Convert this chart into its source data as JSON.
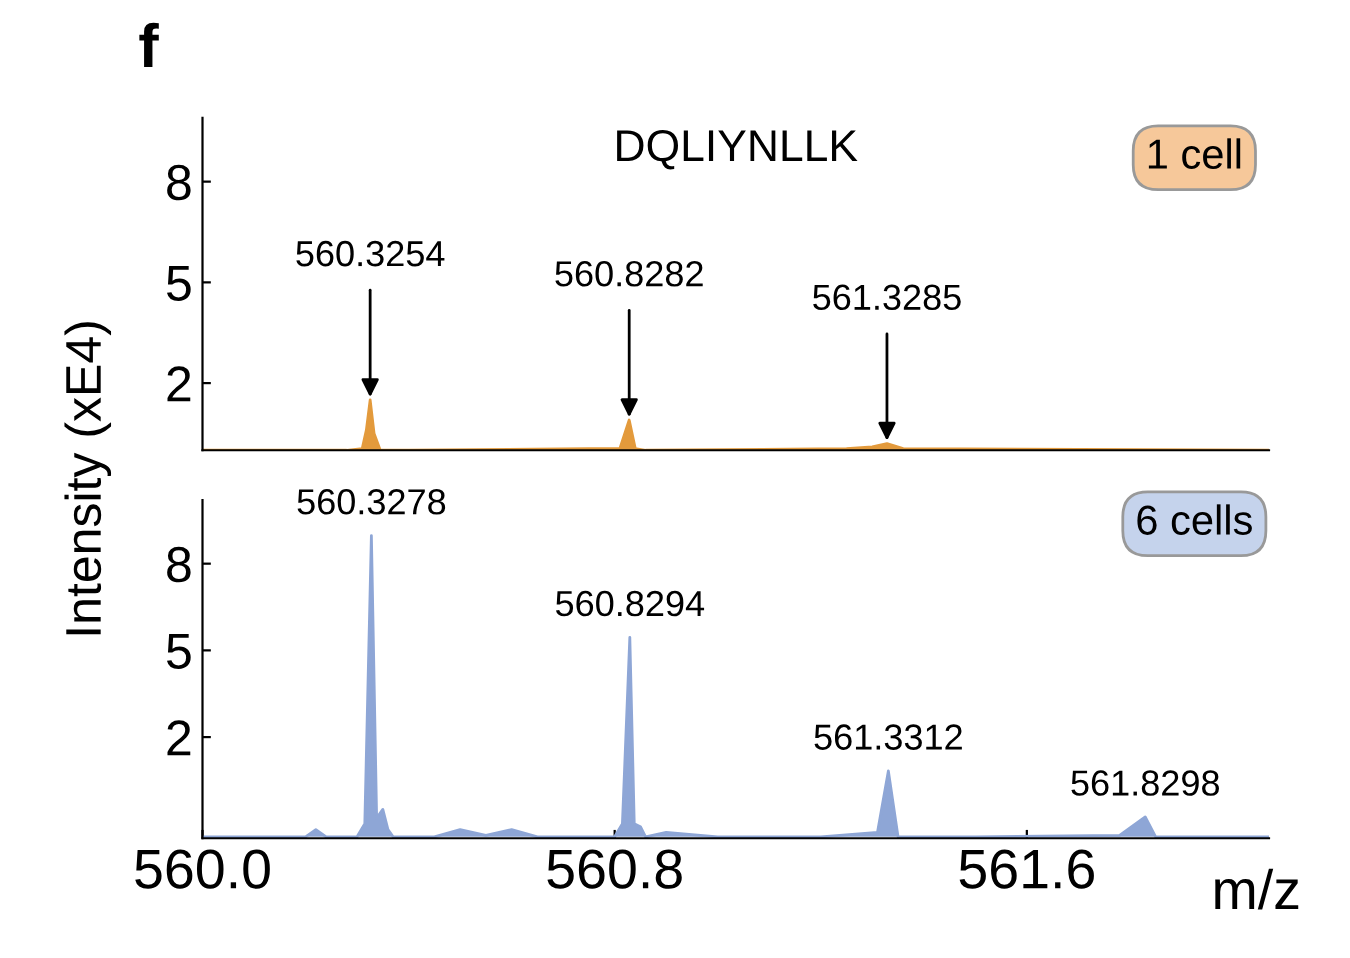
{
  "chart_data": [
    {
      "type": "area",
      "title": "DQLIYNLLK",
      "ylabel": "Intensity (xE4)",
      "xlim": [
        560.0,
        562.07
      ],
      "ylim": [
        0,
        9.9
      ],
      "yticks": [
        2,
        5,
        8
      ],
      "tick_labels": "y",
      "grid": false,
      "legend": false,
      "annotations": [
        "f",
        "1 cell",
        {
          "text": "560.3254",
          "x": 560.3254,
          "y": 1.5
        },
        {
          "text": "560.8282",
          "x": 560.8282,
          "y": 0.9
        },
        {
          "text": "561.3285",
          "x": 561.3285,
          "y": 0.2
        }
      ],
      "series": [
        {
          "color": "#e39a3c",
          "x": [
            560.0,
            560.28,
            560.31,
            560.318,
            560.3254,
            560.333,
            560.345,
            560.4,
            560.75,
            560.81,
            560.8282,
            560.84,
            560.86,
            561.25,
            561.3,
            561.3285,
            561.36,
            562.07
          ],
          "values": [
            0,
            0,
            0.05,
            0.6,
            1.5,
            0.5,
            0,
            0,
            0.05,
            0.05,
            0.9,
            0.05,
            0,
            0.05,
            0.1,
            0.2,
            0.05,
            0
          ]
        }
      ]
    },
    {
      "type": "area",
      "xlabel": "m/z",
      "xlim": [
        560.0,
        562.07
      ],
      "xticks": [
        {
          "value": 560.0,
          "label": "560.0"
        },
        560.8,
        561.6
      ],
      "ylim": [
        -1.5,
        10.2
      ],
      "yticks": [
        2,
        5,
        8
      ],
      "grid": false,
      "legend": false,
      "annotations": [
        "6 cells",
        {
          "text": "560.3278",
          "x": 560.3278,
          "y": 8.97
        },
        {
          "text": "560.8294",
          "x": 560.8294,
          "y": 5.45
        },
        {
          "text": "561.3312",
          "x": 561.3312,
          "y": 0.83
        },
        {
          "text": "561.8298",
          "x": 561.8298,
          "y": -0.76
        }
      ],
      "series": [
        {
          "color": "#8ea6d6",
          "x": [
            560.0,
            560.2,
            560.22,
            560.24,
            560.3,
            560.315,
            560.3278,
            560.338,
            560.35,
            560.36,
            560.37,
            560.45,
            560.5,
            560.55,
            560.6,
            560.65,
            560.8,
            560.815,
            560.8294,
            560.838,
            560.85,
            560.86,
            560.9,
            561.0,
            561.2,
            561.31,
            561.3312,
            561.35,
            561.5,
            561.78,
            561.8298,
            561.85,
            562.07
          ],
          "values": [
            -1.45,
            -1.45,
            -1.2,
            -1.45,
            -1.45,
            -1.0,
            8.97,
            -0.8,
            -0.5,
            -1.2,
            -1.45,
            -1.45,
            -1.2,
            -1.4,
            -1.2,
            -1.45,
            -1.45,
            -1.0,
            5.45,
            -1.0,
            -1.1,
            -1.45,
            -1.3,
            -1.45,
            -1.45,
            -1.3,
            0.83,
            -1.45,
            -1.45,
            -1.4,
            -0.76,
            -1.45,
            -1.45
          ]
        }
      ]
    }
  ]
}
